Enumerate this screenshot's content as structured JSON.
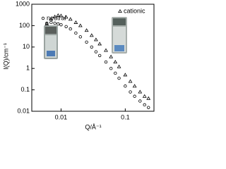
{
  "chart_data": {
    "type": "scatter",
    "x_label": "Q/Å⁻¹",
    "y_label": "I(Q)/cm⁻¹",
    "xscale": "log",
    "yscale": "log",
    "xlim": [
      0.0035,
      0.28
    ],
    "ylim": [
      0.01,
      1000
    ],
    "xticks": [
      0.01,
      0.1
    ],
    "yticks": [
      0.01,
      0.1,
      1,
      10,
      100,
      1000
    ],
    "x": [
      0.006,
      0.007,
      0.008,
      0.009,
      0.01,
      0.012,
      0.014,
      0.017,
      0.02,
      0.025,
      0.03,
      0.035,
      0.04,
      0.05,
      0.06,
      0.07,
      0.08,
      0.1,
      0.12,
      0.14,
      0.17,
      0.2,
      0.23
    ],
    "series": [
      {
        "name": "cationic",
        "marker": "triangle",
        "color": "#000000",
        "values": [
          120,
          200,
          260,
          300,
          290,
          250,
          200,
          140,
          100,
          60,
          35,
          22,
          14,
          7,
          3.5,
          2,
          1.2,
          0.5,
          0.25,
          0.15,
          0.08,
          0.05,
          0.04
        ]
      },
      {
        "name": "neutral",
        "marker": "circle",
        "color": "#000000",
        "values": [
          130,
          140,
          130,
          120,
          110,
          90,
          70,
          45,
          30,
          17,
          10,
          6,
          4,
          2,
          1,
          0.6,
          0.35,
          0.15,
          0.08,
          0.05,
          0.03,
          0.02,
          0.015
        ]
      }
    ]
  }
}
